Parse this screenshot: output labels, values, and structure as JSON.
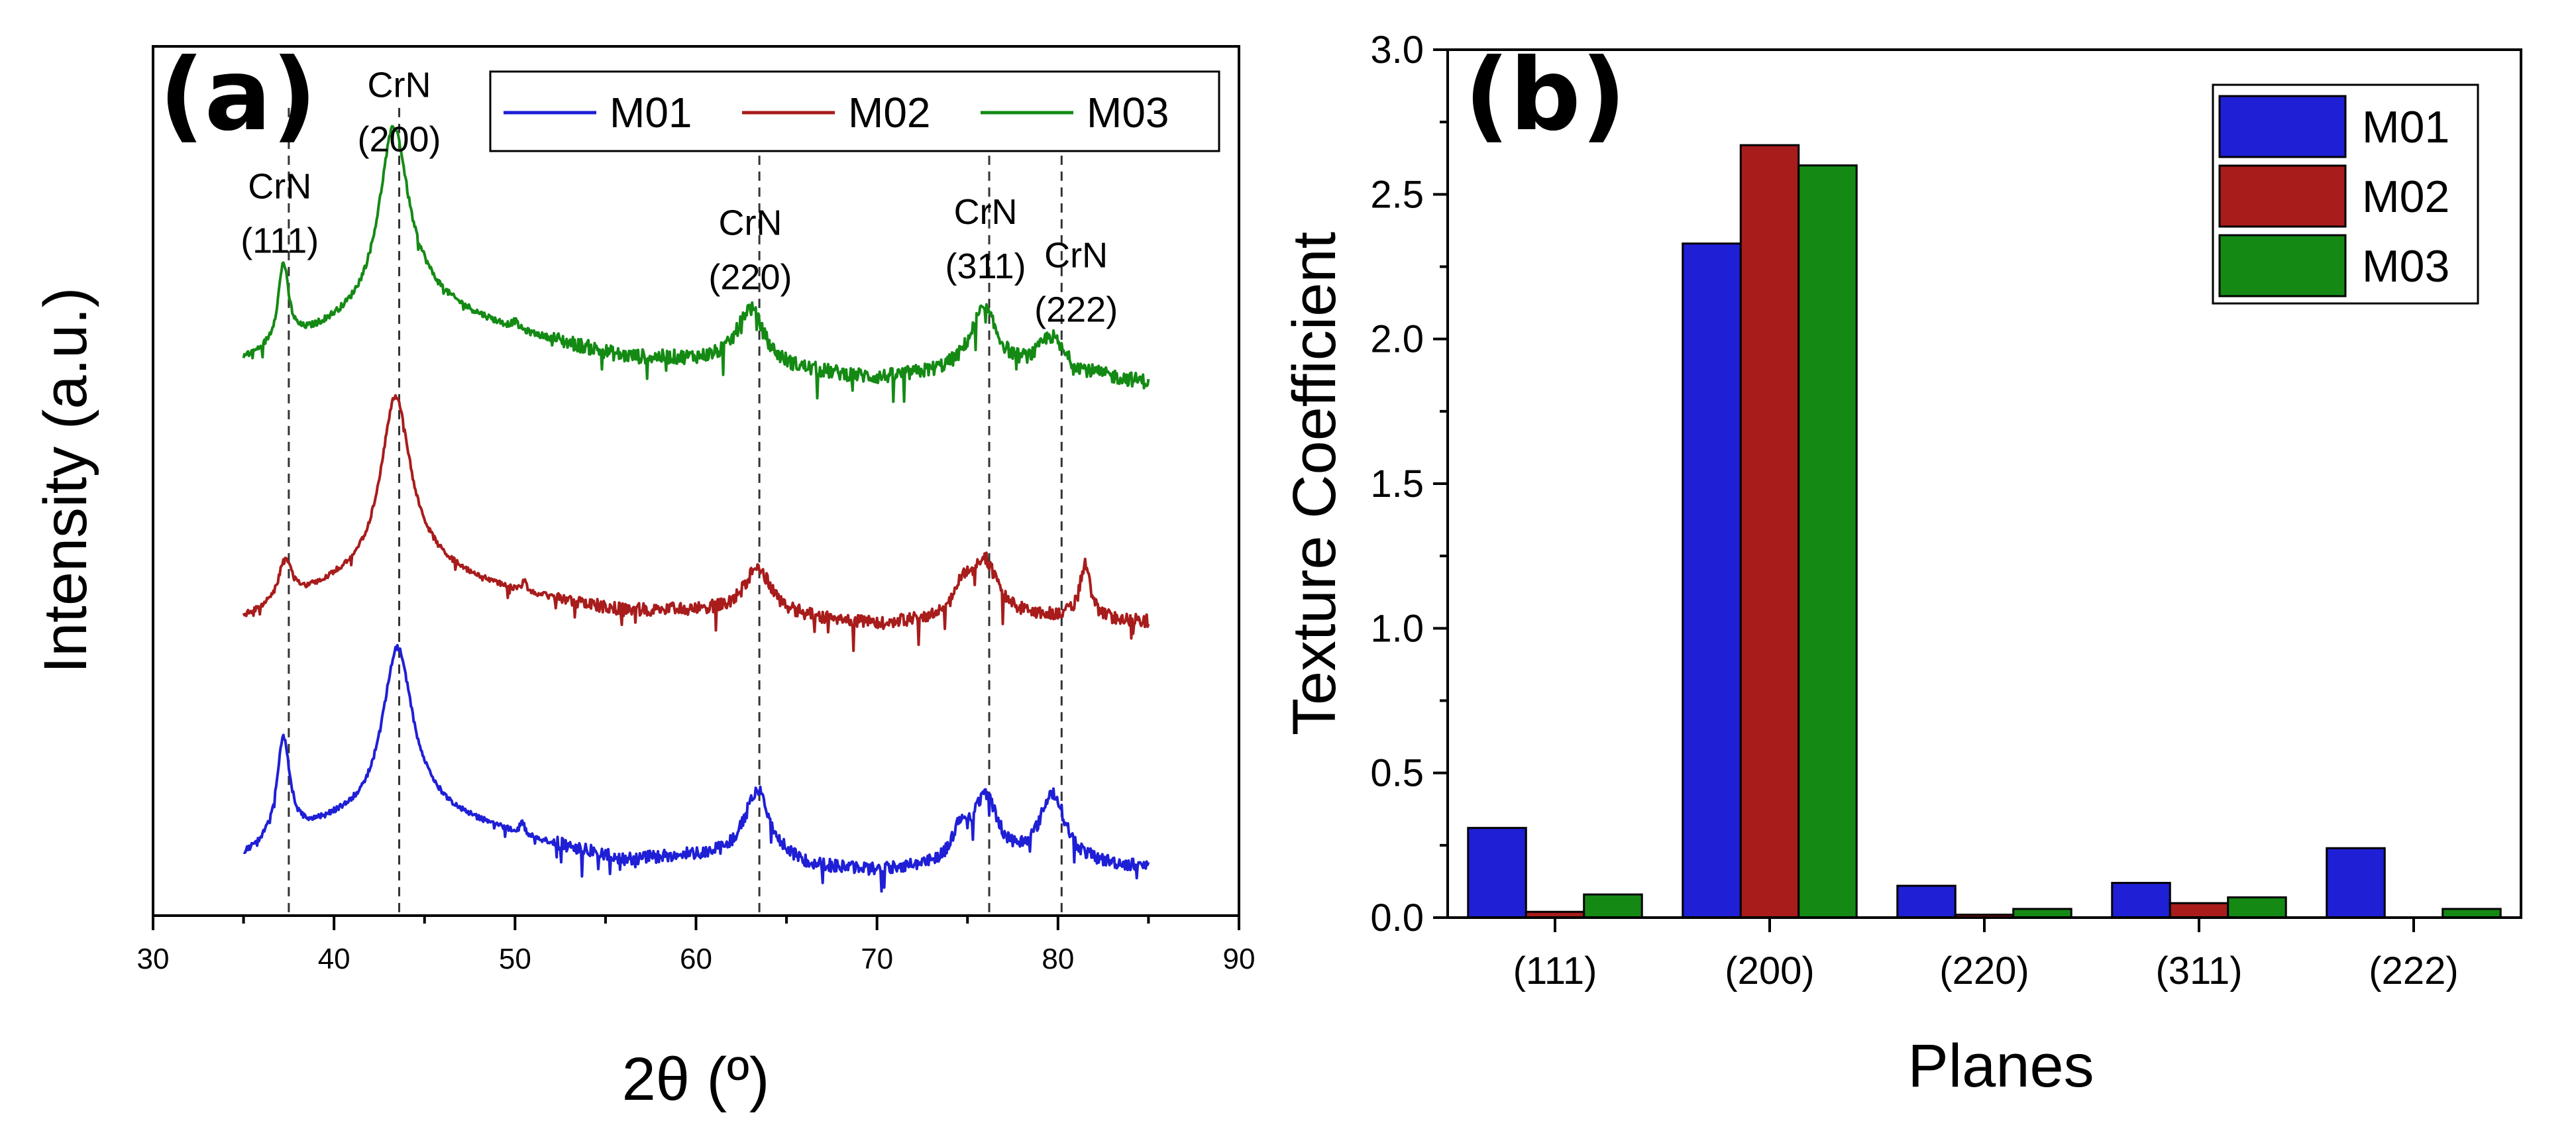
{
  "chart_data": [
    {
      "panel": "(a)",
      "type": "line",
      "xlabel": "2θ (º)",
      "ylabel": "Intensity (a.u.)",
      "xlim": [
        30,
        90
      ],
      "xticks": [
        "30",
        "40",
        "50",
        "60",
        "70",
        "80",
        "90"
      ],
      "legend": {
        "placement": "top-right",
        "entries": [
          "M01",
          "M02",
          "M03"
        ]
      },
      "colors": {
        "M01": "#1f1fd6",
        "M02": "#a81c1c",
        "M03": "#148a14"
      },
      "series": [
        {
          "name": "M01",
          "offset": 0,
          "noise": 0.22,
          "peaks": [
            [
              37.2,
              2.8,
              0.45
            ],
            [
              43.5,
              4.6,
              1.0
            ],
            [
              63.4,
              2.0,
              0.9
            ],
            [
              76.0,
              1.8,
              0.8
            ],
            [
              74.6,
              0.8,
              0.5
            ],
            [
              79.7,
              1.9,
              0.85
            ],
            [
              50.4,
              0.35,
              0.15
            ]
          ],
          "baseline": [
            [
              35,
              0.3
            ],
            [
              40,
              1.2
            ],
            [
              45,
              1.6
            ],
            [
              50,
              0.9
            ],
            [
              56,
              0.2
            ],
            [
              60,
              0.3
            ],
            [
              66,
              0.0
            ],
            [
              70,
              -0.1
            ],
            [
              75,
              0.1
            ],
            [
              80,
              0.1
            ],
            [
              85,
              0.0
            ]
          ]
        },
        {
          "name": "M02",
          "offset": 6.9,
          "noise": 0.22,
          "peaks": [
            [
              37.3,
              1.2,
              0.4
            ],
            [
              43.4,
              4.9,
              1.0
            ],
            [
              63.4,
              1.3,
              0.9
            ],
            [
              75.9,
              1.6,
              0.9
            ],
            [
              74.7,
              0.6,
              0.5
            ],
            [
              81.5,
              1.5,
              0.35
            ],
            [
              50.5,
              0.3,
              0.15
            ]
          ],
          "baseline": [
            [
              35,
              0.0
            ],
            [
              40,
              0.9
            ],
            [
              45,
              1.4
            ],
            [
              50,
              0.7
            ],
            [
              56,
              0.2
            ],
            [
              60,
              0.2
            ],
            [
              66,
              0.0
            ],
            [
              70,
              -0.2
            ],
            [
              75,
              0.0
            ],
            [
              80,
              0.0
            ],
            [
              85,
              -0.1
            ]
          ]
        },
        {
          "name": "M03",
          "offset": 13.6,
          "noise": 0.25,
          "peaks": [
            [
              37.2,
              2.2,
              0.35
            ],
            [
              43.3,
              5.1,
              1.0
            ],
            [
              63.0,
              1.6,
              0.9
            ],
            [
              75.9,
              1.7,
              0.9
            ],
            [
              79.6,
              0.9,
              0.8
            ],
            [
              50.0,
              0.2,
              0.2
            ]
          ],
          "baseline": [
            [
              35,
              0.4
            ],
            [
              40,
              1.3
            ],
            [
              45,
              2.0
            ],
            [
              50,
              1.2
            ],
            [
              56,
              0.5
            ],
            [
              60,
              0.4
            ],
            [
              66,
              0.1
            ],
            [
              70,
              -0.1
            ],
            [
              75,
              0.1
            ],
            [
              80,
              0.1
            ],
            [
              85,
              -0.2
            ]
          ]
        }
      ],
      "reference_lines": [
        37.5,
        43.6,
        63.5,
        76.2,
        80.2
      ],
      "annotations": [
        {
          "line1": "CrN",
          "line2": "(200)",
          "x": 43.6,
          "y": 22.1
        },
        {
          "line1": "CrN",
          "line2": "(111)",
          "x": 37.0,
          "y": 19.3
        },
        {
          "line1": "CrN",
          "line2": "(220)",
          "x": 63.0,
          "y": 18.3
        },
        {
          "line1": "CrN",
          "line2": "(311)",
          "x": 76.0,
          "y": 18.6
        },
        {
          "line1": "CrN",
          "line2": "(222)",
          "x": 81.0,
          "y": 17.4
        }
      ]
    },
    {
      "panel": "(b)",
      "type": "bar",
      "xlabel": "Planes",
      "ylabel": "Texture Coefficient",
      "ylim": [
        0.0,
        3.0
      ],
      "yticks": [
        "0.0",
        "0.5",
        "1.0",
        "1.5",
        "2.0",
        "2.5",
        "3.0"
      ],
      "categories": [
        "(111)",
        "(200)",
        "(220)",
        "(311)",
        "(222)"
      ],
      "legend": {
        "placement": "top-right",
        "entries": [
          "M01",
          "M02",
          "M03"
        ]
      },
      "colors": {
        "M01": "#1f1fd6",
        "M02": "#a81c1c",
        "M03": "#148a14"
      },
      "series": [
        {
          "name": "M01",
          "values": [
            0.31,
            2.33,
            0.11,
            0.12,
            0.24
          ]
        },
        {
          "name": "M02",
          "values": [
            0.02,
            2.67,
            0.01,
            0.05,
            0.0
          ]
        },
        {
          "name": "M03",
          "values": [
            0.08,
            2.6,
            0.03,
            0.07,
            0.03
          ]
        }
      ]
    }
  ]
}
